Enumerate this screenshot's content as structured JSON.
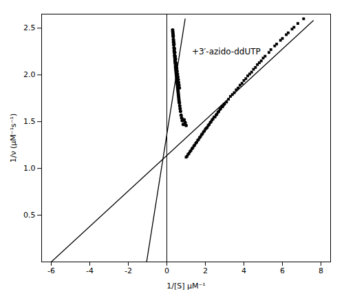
{
  "chart_data": {
    "type": "scatter",
    "xlabel": "1/[S] μM⁻¹",
    "ylabel": "1/ν (μM⁻¹s⁻¹)",
    "xlim": [
      -6.5,
      8.5
    ],
    "ylim": [
      0,
      2.65
    ],
    "xticks": [
      -6,
      -4,
      -2,
      0,
      2,
      4,
      6,
      8
    ],
    "yticks": [
      0.5,
      {
        "value": 1.0,
        "label": "1.0"
      },
      1.5,
      {
        "value": 2.0,
        "label": "2.0"
      },
      2.5
    ],
    "grid": false,
    "annotations": [
      {
        "text": "+3′-azido-ddUTP",
        "x": 1.3,
        "y": 2.25,
        "color": "#000000"
      }
    ],
    "series": [
      {
        "type": "line",
        "color": "#000000",
        "x": [
          -1.05,
          0.95
        ],
        "values": [
          0.0,
          2.6
        ]
      },
      {
        "type": "line",
        "color": "#000000",
        "x": [
          -6.0,
          7.6
        ],
        "values": [
          0.0,
          2.58
        ]
      },
      {
        "type": "scatter",
        "marker": "circle",
        "color": "#000000",
        "x": [
          0.3,
          0.32,
          0.33,
          0.34,
          0.35,
          0.36,
          0.37,
          0.38,
          0.39,
          0.4,
          0.41,
          0.42,
          0.43,
          0.44,
          0.45,
          0.46,
          0.47,
          0.48,
          0.49,
          0.5,
          0.51,
          0.52,
          0.53,
          0.54,
          0.55,
          0.56,
          0.57,
          0.58,
          0.59,
          0.6,
          0.61,
          0.62,
          0.63,
          0.64,
          0.65,
          0.67,
          0.69,
          0.71,
          0.74,
          0.77,
          0.8,
          0.85,
          0.9,
          0.95,
          1.0,
          0.31,
          0.33,
          0.35,
          0.37,
          0.39,
          0.41,
          0.43,
          0.45,
          0.47,
          0.49,
          0.51,
          0.53,
          0.55,
          0.57,
          0.59,
          0.61,
          0.63,
          0.65
        ],
        "values": [
          2.48,
          2.44,
          2.41,
          2.38,
          2.35,
          2.32,
          2.29,
          2.26,
          2.24,
          2.21,
          2.19,
          2.16,
          2.14,
          2.12,
          2.09,
          2.07,
          2.05,
          2.03,
          2.01,
          1.99,
          1.97,
          1.95,
          1.93,
          1.91,
          1.89,
          1.87,
          1.85,
          1.83,
          1.81,
          1.79,
          1.77,
          1.75,
          1.73,
          1.71,
          1.7,
          1.67,
          1.64,
          1.61,
          1.57,
          1.54,
          1.51,
          1.47,
          1.52,
          1.49,
          1.46,
          2.46,
          2.42,
          2.36,
          2.33,
          2.28,
          2.24,
          2.2,
          2.17,
          2.13,
          2.1,
          2.07,
          2.04,
          2.01,
          1.98,
          1.95,
          1.92,
          1.89,
          1.86
        ]
      },
      {
        "type": "scatter",
        "marker": "square",
        "color": "#000000",
        "x": [
          1.0,
          1.1,
          1.2,
          1.3,
          1.4,
          1.5,
          1.6,
          1.7,
          1.8,
          1.9,
          2.0,
          2.1,
          2.2,
          2.3,
          2.4,
          2.5,
          2.6,
          2.7,
          2.8,
          2.9,
          3.0,
          3.2,
          3.4,
          3.6,
          3.8,
          4.0,
          4.2,
          4.4,
          4.6,
          4.8,
          5.0,
          5.3,
          5.6,
          5.9,
          6.2,
          6.5,
          6.8,
          7.1,
          1.05,
          1.15,
          1.25,
          1.35,
          1.45,
          1.55,
          1.65,
          1.75,
          1.85,
          1.95,
          2.05,
          2.15,
          2.25,
          2.35,
          2.45,
          2.55,
          2.65,
          2.75,
          2.85,
          2.95,
          3.1,
          3.3,
          3.5,
          3.7,
          3.9,
          4.1,
          4.3,
          4.5,
          4.7,
          4.9,
          5.1,
          5.4,
          5.7,
          6.0,
          6.3,
          6.6
        ],
        "values": [
          1.12,
          1.15,
          1.18,
          1.21,
          1.24,
          1.27,
          1.3,
          1.33,
          1.36,
          1.39,
          1.42,
          1.44,
          1.47,
          1.5,
          1.53,
          1.55,
          1.58,
          1.61,
          1.64,
          1.66,
          1.69,
          1.74,
          1.79,
          1.84,
          1.89,
          1.94,
          1.99,
          2.03,
          2.08,
          2.13,
          2.18,
          2.24,
          2.31,
          2.37,
          2.43,
          2.49,
          2.55,
          2.6,
          1.13,
          1.16,
          1.19,
          1.22,
          1.25,
          1.28,
          1.31,
          1.34,
          1.37,
          1.4,
          1.43,
          1.46,
          1.49,
          1.52,
          1.55,
          1.57,
          1.6,
          1.63,
          1.66,
          1.68,
          1.71,
          1.77,
          1.81,
          1.86,
          1.91,
          1.96,
          2.01,
          2.06,
          2.11,
          2.15,
          2.2,
          2.27,
          2.33,
          2.39,
          2.45,
          2.51
        ]
      }
    ]
  }
}
